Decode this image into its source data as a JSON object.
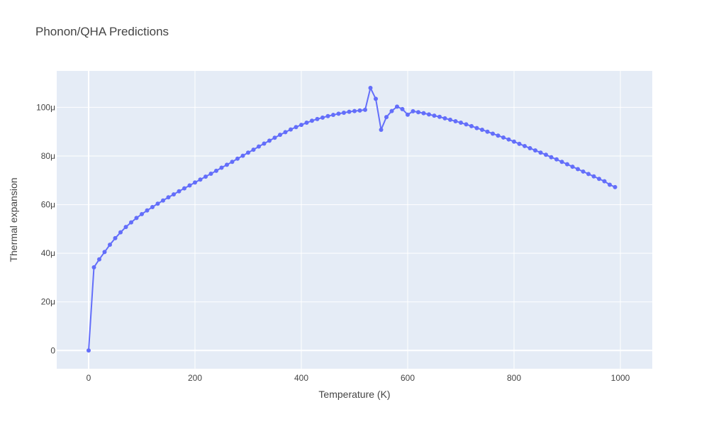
{
  "chart_data": {
    "type": "line",
    "title": "Phonon/QHA Predictions",
    "xlabel": "Temperature (K)",
    "ylabel": "Thermal expansion",
    "xlim": [
      -60,
      1060
    ],
    "ylim": [
      -7.5e-06,
      0.000115
    ],
    "x_ticks": [
      {
        "value": 0,
        "label": "0"
      },
      {
        "value": 200,
        "label": "200"
      },
      {
        "value": 400,
        "label": "400"
      },
      {
        "value": 600,
        "label": "600"
      },
      {
        "value": 800,
        "label": "800"
      },
      {
        "value": 1000,
        "label": "1000"
      }
    ],
    "y_ticks": [
      {
        "value": 0,
        "label": "0"
      },
      {
        "value": 2e-05,
        "label": "20μ"
      },
      {
        "value": 4e-05,
        "label": "40μ"
      },
      {
        "value": 6e-05,
        "label": "60μ"
      },
      {
        "value": 8e-05,
        "label": "80μ"
      },
      {
        "value": 0.0001,
        "label": "100μ"
      }
    ],
    "grid": true,
    "mode": "lines+markers",
    "series_color": "#636efa",
    "plot_bg": "#e5ecf6",
    "series": [
      {
        "x": [
          0,
          10,
          20,
          30,
          40,
          50,
          60,
          70,
          80,
          90,
          100,
          110,
          120,
          130,
          140,
          150,
          160,
          170,
          180,
          190,
          200,
          210,
          220,
          230,
          240,
          250,
          260,
          270,
          280,
          290,
          300,
          310,
          320,
          330,
          340,
          350,
          360,
          370,
          380,
          390,
          400,
          410,
          420,
          430,
          440,
          450,
          460,
          470,
          480,
          490,
          500,
          510,
          520,
          530,
          540,
          550,
          560,
          570,
          580,
          590,
          600,
          610,
          620,
          630,
          640,
          650,
          660,
          670,
          680,
          690,
          700,
          710,
          720,
          730,
          740,
          750,
          760,
          770,
          780,
          790,
          800,
          810,
          820,
          830,
          840,
          850,
          860,
          870,
          880,
          890,
          900,
          910,
          920,
          930,
          940,
          950,
          960,
          970,
          980,
          990
        ],
        "y": [
          0,
          3.42e-05,
          3.75e-05,
          4.05e-05,
          4.35e-05,
          4.62e-05,
          4.86e-05,
          5.08e-05,
          5.27e-05,
          5.45e-05,
          5.61e-05,
          5.76e-05,
          5.9e-05,
          6.04e-05,
          6.17e-05,
          6.3e-05,
          6.42e-05,
          6.55e-05,
          6.67e-05,
          6.79e-05,
          6.91e-05,
          7.03e-05,
          7.15e-05,
          7.27e-05,
          7.39e-05,
          7.52e-05,
          7.64e-05,
          7.76e-05,
          7.89e-05,
          8.01e-05,
          8.14e-05,
          8.26e-05,
          8.39e-05,
          8.51e-05,
          8.63e-05,
          8.75e-05,
          8.87e-05,
          8.98e-05,
          9.09e-05,
          9.19e-05,
          9.28e-05,
          9.37e-05,
          9.45e-05,
          9.52e-05,
          9.58e-05,
          9.64e-05,
          9.69e-05,
          9.74e-05,
          9.78e-05,
          9.82e-05,
          9.85e-05,
          9.87e-05,
          9.9e-05,
          0.000108,
          0.0001035,
          9.08e-05,
          9.6e-05,
          9.85e-05,
          0.0001003,
          9.93e-05,
          9.7e-05,
          9.84e-05,
          9.8e-05,
          9.76e-05,
          9.71e-05,
          9.66e-05,
          9.61e-05,
          9.55e-05,
          9.49e-05,
          9.43e-05,
          9.37e-05,
          9.3e-05,
          9.23e-05,
          9.15e-05,
          9.08e-05,
          9e-05,
          8.92e-05,
          8.84e-05,
          8.76e-05,
          8.68e-05,
          8.59e-05,
          8.5e-05,
          8.41e-05,
          8.32e-05,
          8.23e-05,
          8.14e-05,
          8.05e-05,
          7.95e-05,
          7.86e-05,
          7.76e-05,
          7.66e-05,
          7.56e-05,
          7.46e-05,
          7.36e-05,
          7.26e-05,
          7.16e-05,
          7.06e-05,
          6.96e-05,
          6.82e-05,
          6.72e-05
        ]
      }
    ]
  }
}
